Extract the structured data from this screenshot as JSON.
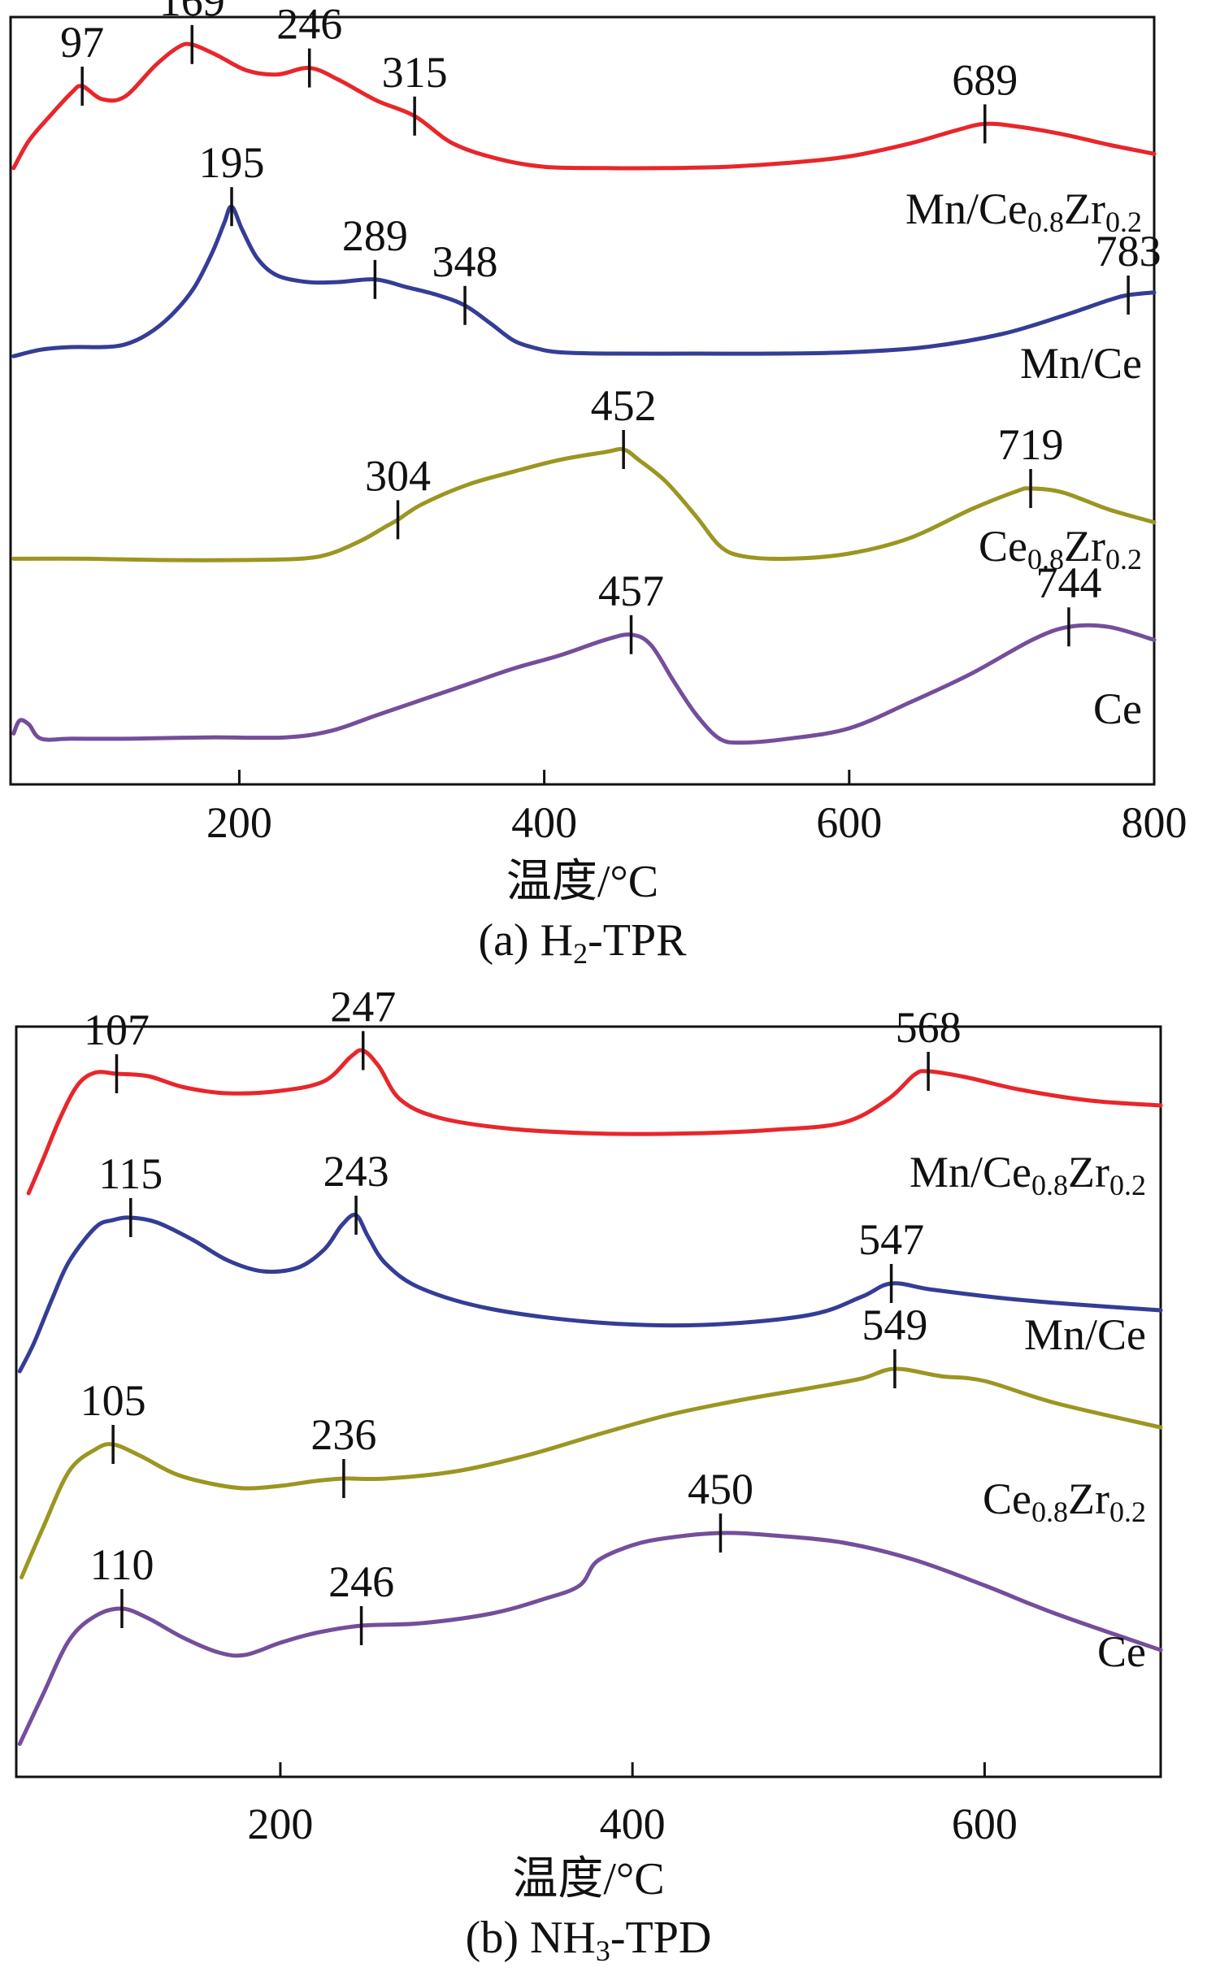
{
  "chart_data": [
    {
      "type": "line",
      "title": "",
      "caption": {
        "prefix": "(a) H",
        "sub": "2",
        "suffix": "-TPR"
      },
      "xlabel": "温度/°C",
      "ylabel": "",
      "xlim": [
        50,
        800
      ],
      "xticks": [
        200,
        400,
        600,
        800
      ],
      "grid": false,
      "legend": "inline-right",
      "series": [
        {
          "name": "Mn/Ce0.8Zr0.2",
          "label_parts": [
            {
              "t": "Mn/Ce",
              "s": false
            },
            {
              "t": "0.8",
              "s": true
            },
            {
              "t": "Zr",
              "s": false
            },
            {
              "t": "0.2",
              "s": true
            }
          ],
          "color": "#e8262b",
          "x": [
            52,
            62,
            75,
            90,
            97,
            110,
            125,
            145,
            160,
            169,
            185,
            205,
            225,
            246,
            265,
            290,
            315,
            340,
            370,
            400,
            440,
            480,
            520,
            560,
            600,
            640,
            670,
            689,
            710,
            740,
            770,
            800
          ],
          "y": [
            0.07,
            0.28,
            0.46,
            0.65,
            0.7,
            0.6,
            0.62,
            0.86,
            1.0,
            1.02,
            0.94,
            0.82,
            0.79,
            0.84,
            0.75,
            0.59,
            0.47,
            0.26,
            0.14,
            0.08,
            0.07,
            0.07,
            0.08,
            0.11,
            0.16,
            0.26,
            0.36,
            0.41,
            0.39,
            0.33,
            0.25,
            0.18
          ],
          "peaks": [
            97,
            169,
            246,
            315,
            689
          ]
        },
        {
          "name": "Mn/Ce",
          "label_parts": [
            {
              "t": "Mn/Ce",
              "s": false
            }
          ],
          "color": "#343d96",
          "x": [
            52,
            70,
            90,
            110,
            125,
            140,
            155,
            170,
            182,
            190,
            195,
            202,
            212,
            225,
            245,
            265,
            289,
            310,
            330,
            348,
            365,
            380,
            395,
            410,
            440,
            500,
            550,
            600,
            650,
            700,
            740,
            770,
            783,
            800
          ],
          "y": [
            0.03,
            0.08,
            0.1,
            0.1,
            0.12,
            0.2,
            0.34,
            0.55,
            0.82,
            1.05,
            1.18,
            1.0,
            0.78,
            0.65,
            0.6,
            0.6,
            0.62,
            0.56,
            0.5,
            0.42,
            0.28,
            0.15,
            0.09,
            0.06,
            0.05,
            0.05,
            0.05,
            0.06,
            0.1,
            0.2,
            0.34,
            0.46,
            0.5,
            0.52
          ],
          "peaks": [
            195,
            289,
            348,
            783
          ]
        },
        {
          "name": "Ce0.8Zr0.2",
          "label_parts": [
            {
              "t": "Ce",
              "s": false
            },
            {
              "t": "0.8",
              "s": true
            },
            {
              "t": "Zr",
              "s": false
            },
            {
              "t": "0.2",
              "s": true
            }
          ],
          "color": "#9b9621",
          "x": [
            52,
            100,
            150,
            200,
            240,
            260,
            280,
            295,
            304,
            320,
            350,
            380,
            410,
            440,
            452,
            462,
            480,
            500,
            515,
            530,
            560,
            600,
            640,
            680,
            710,
            719,
            740,
            770,
            800
          ],
          "y": [
            0.06,
            0.06,
            0.05,
            0.05,
            0.06,
            0.1,
            0.2,
            0.3,
            0.36,
            0.48,
            0.63,
            0.73,
            0.82,
            0.88,
            0.9,
            0.82,
            0.65,
            0.38,
            0.16,
            0.08,
            0.06,
            0.1,
            0.22,
            0.44,
            0.58,
            0.6,
            0.57,
            0.44,
            0.34
          ],
          "peaks": [
            304,
            452,
            719
          ]
        },
        {
          "name": "Ce",
          "label_parts": [
            {
              "t": "Ce",
              "s": false
            }
          ],
          "color": "#744e9b",
          "x": [
            52,
            56,
            62,
            70,
            90,
            130,
            180,
            230,
            260,
            290,
            320,
            350,
            380,
            410,
            440,
            457,
            470,
            485,
            500,
            515,
            530,
            560,
            600,
            640,
            680,
            720,
            744,
            770,
            800
          ],
          "y": [
            0.06,
            0.16,
            0.13,
            0.02,
            0.02,
            0.02,
            0.03,
            0.03,
            0.08,
            0.2,
            0.32,
            0.44,
            0.56,
            0.66,
            0.78,
            0.82,
            0.74,
            0.46,
            0.2,
            0.02,
            -0.01,
            0.02,
            0.1,
            0.3,
            0.52,
            0.78,
            0.88,
            0.88,
            0.78
          ],
          "peaks": [
            457,
            744
          ]
        }
      ]
    },
    {
      "type": "line",
      "title": "",
      "caption": {
        "prefix": "(b) NH",
        "sub": "3",
        "suffix": "-TPD"
      },
      "xlabel": "温度/°C",
      "ylabel": "",
      "xlim": [
        50,
        700
      ],
      "xticks": [
        200,
        400,
        600
      ],
      "grid": false,
      "legend": "inline-right",
      "series": [
        {
          "name": "Mn/Ce0.8Zr0.2",
          "label_parts": [
            {
              "t": "Mn/Ce",
              "s": false
            },
            {
              "t": "0.8",
              "s": true
            },
            {
              "t": "Zr",
              "s": false
            },
            {
              "t": "0.2",
              "s": true
            }
          ],
          "color": "#e8262b",
          "x": [
            57,
            65,
            75,
            85,
            95,
            107,
            125,
            145,
            170,
            200,
            225,
            240,
            247,
            256,
            268,
            290,
            330,
            380,
            430,
            480,
            520,
            545,
            560,
            568,
            590,
            620,
            660,
            700
          ],
          "y": [
            0.08,
            0.35,
            0.7,
            0.97,
            1.07,
            1.06,
            1.04,
            0.95,
            0.9,
            0.92,
            1.0,
            1.2,
            1.25,
            1.12,
            0.85,
            0.7,
            0.61,
            0.57,
            0.57,
            0.6,
            0.66,
            0.85,
            1.05,
            1.08,
            1.03,
            0.93,
            0.84,
            0.8
          ],
          "peaks": [
            107,
            247,
            568
          ]
        },
        {
          "name": "Mn/Ce",
          "label_parts": [
            {
              "t": "Mn/Ce",
              "s": false
            }
          ],
          "color": "#343d96",
          "x": [
            52,
            60,
            70,
            80,
            95,
            105,
            115,
            130,
            150,
            170,
            190,
            210,
            225,
            235,
            243,
            250,
            260,
            280,
            320,
            380,
            440,
            500,
            530,
            547,
            570,
            610,
            650,
            700
          ],
          "y": [
            0.02,
            0.25,
            0.6,
            0.92,
            1.2,
            1.26,
            1.28,
            1.24,
            1.1,
            0.93,
            0.84,
            0.87,
            1.02,
            1.22,
            1.3,
            1.12,
            0.9,
            0.7,
            0.53,
            0.42,
            0.4,
            0.48,
            0.63,
            0.74,
            0.69,
            0.62,
            0.57,
            0.52
          ],
          "peaks": [
            115,
            243,
            547
          ]
        },
        {
          "name": "Ce0.8Zr0.2",
          "label_parts": [
            {
              "t": "Ce",
              "s": false
            },
            {
              "t": "0.8",
              "s": true
            },
            {
              "t": "Zr",
              "s": false
            },
            {
              "t": "0.2",
              "s": true
            }
          ],
          "color": "#9b9621",
          "x": [
            53,
            65,
            80,
            95,
            105,
            120,
            140,
            160,
            180,
            200,
            220,
            236,
            260,
            300,
            340,
            380,
            420,
            460,
            500,
            530,
            549,
            575,
            600,
            640,
            700
          ],
          "y": [
            0.05,
            0.45,
            0.92,
            1.1,
            1.14,
            1.05,
            0.9,
            0.82,
            0.78,
            0.8,
            0.84,
            0.86,
            0.86,
            0.92,
            1.05,
            1.22,
            1.38,
            1.5,
            1.6,
            1.68,
            1.76,
            1.7,
            1.66,
            1.48,
            1.28
          ],
          "peaks": [
            105,
            236,
            549
          ]
        },
        {
          "name": "Ce",
          "label_parts": [
            {
              "t": "Ce",
              "s": false
            }
          ],
          "color": "#744e9b",
          "x": [
            52,
            65,
            80,
            95,
            110,
            125,
            145,
            165,
            180,
            200,
            220,
            246,
            280,
            320,
            350,
            370,
            380,
            400,
            420,
            450,
            480,
            520,
            560,
            600,
            640,
            700
          ],
          "y": [
            0.05,
            0.45,
            0.9,
            1.1,
            1.16,
            1.08,
            0.92,
            0.8,
            0.78,
            0.88,
            0.96,
            1.02,
            1.04,
            1.12,
            1.24,
            1.35,
            1.55,
            1.68,
            1.74,
            1.78,
            1.76,
            1.7,
            1.56,
            1.35,
            1.12,
            0.82
          ],
          "peaks": [
            110,
            246,
            450
          ]
        }
      ]
    }
  ]
}
